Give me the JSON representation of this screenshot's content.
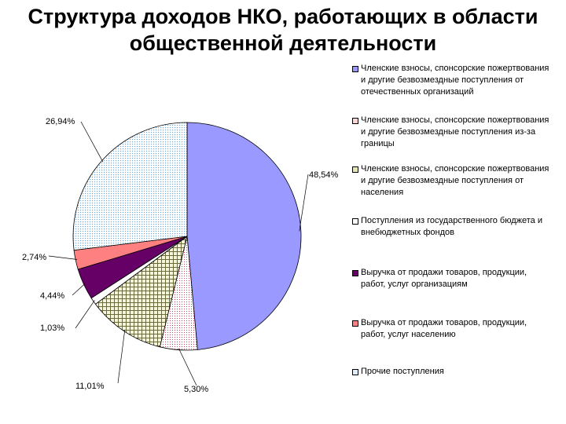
{
  "title_lines": [
    "Структура доходов НКО, работающих в области",
    "общественной деятельности"
  ],
  "chart_data": {
    "type": "pie",
    "title": "Структура доходов НКО, работающих в области общественной деятельности",
    "legend_position": "right",
    "slices": [
      {
        "name": "Членские взносы, спонсорские пожертвования и другие безвозмездные поступления от отечественных организаций",
        "value": 48.54,
        "label": "48,54%",
        "color": "#9999ff",
        "pattern": "solid"
      },
      {
        "name": "Членские взносы, спонсорские пожертвования и другие безвозмездные поступления из-за границы",
        "value": 5.3,
        "label": "5,30%",
        "color": "#ffcccc",
        "pattern": "dots"
      },
      {
        "name": "Членские взносы, спонсорские пожертвования и другие безвозмездные поступления от населения",
        "value": 11.01,
        "label": "11,01%",
        "color": "#ffffcc",
        "pattern": "check"
      },
      {
        "name": "Поступления из государственного бюджета и внебюджетных фондов",
        "value": 1.03,
        "label": "1,03%",
        "color": "#ffffff",
        "pattern": "solid"
      },
      {
        "name": "Выручка от продажи товаров, продукции, работ, услуг организациям",
        "value": 4.44,
        "label": "4,44%",
        "color": "#660066",
        "pattern": "solid"
      },
      {
        "name": "Выручка от продажи товаров, продукции, работ, услуг населению",
        "value": 2.74,
        "label": "2,74%",
        "color": "#ff8080",
        "pattern": "solid"
      },
      {
        "name": "Прочие поступления",
        "value": 26.94,
        "label": "26,94%",
        "color": "#cce6ff",
        "pattern": "dots"
      }
    ]
  },
  "legend": [
    {
      "lines": [
        "Членские взносы, спонсорские пожертвования",
        "и другие безвозмездные поступления от",
        "отечественных организаций"
      ],
      "color": "#9999ff"
    },
    {
      "lines": [
        "Членские взносы, спонсорские пожертвования",
        "и другие безвозмездные поступления из-за",
        "границы"
      ],
      "color": "#ffcccc"
    },
    {
      "lines": [
        "Членские взносы, спонсорские пожертвования",
        "и другие безвозмездные поступления от",
        "населения"
      ],
      "color": "#e6e6b3"
    },
    {
      "lines": [
        "Поступления из государственного бюджета и",
        "внебюджетных фондов"
      ],
      "color": "#ffffff"
    },
    {
      "lines": [
        "Выручка от продажи товаров, продукции,",
        "работ, услуг организациям"
      ],
      "color": "#660066"
    },
    {
      "lines": [
        "Выручка от продажи товаров, продукции,",
        "работ, услуг населению"
      ],
      "color": "#ff8080"
    },
    {
      "lines": [
        "Прочие поступления"
      ],
      "color": "#cce6ff"
    }
  ]
}
